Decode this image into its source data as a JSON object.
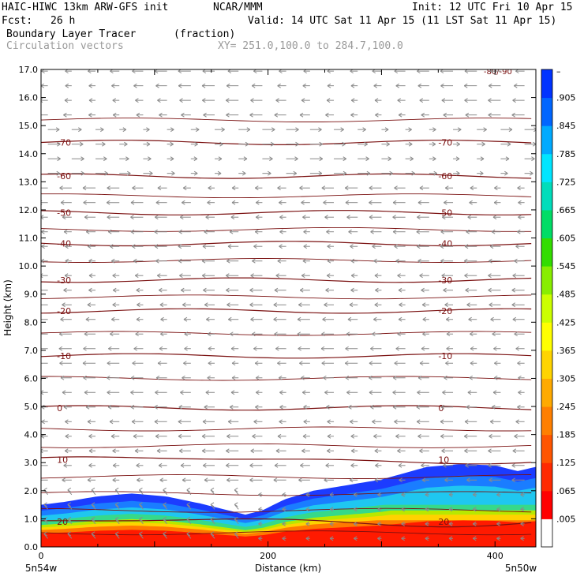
{
  "header": {
    "model": "HAIC-HIWC 13km ARW-GFS init",
    "org": "NCAR/MMM",
    "init": "Init: 12 UTC Fri 10 Apr 15",
    "fcst_label": "Fcst:",
    "fcst_value": "26 h",
    "valid": "Valid: 14 UTC Sat 11 Apr 15 (11 LST Sat 11 Apr 15)",
    "field": "Boundary Layer Tracer",
    "units": "(fraction)",
    "overlay": "Circulation vectors",
    "xy": "XY= 251.0,100.0 to 284.7,100.0"
  },
  "colors": {
    "contour": "#7a1010",
    "vector": "#8a8a8a",
    "scale": [
      "#ffffff",
      "#ff0000",
      "#ff2a00",
      "#ff5500",
      "#ff7f00",
      "#ffaa00",
      "#ffd400",
      "#ffff00",
      "#ccff00",
      "#88ee00",
      "#33dd00",
      "#00dd66",
      "#00ddbb",
      "#00e5ff",
      "#00aaff",
      "#0066ff",
      "#0033ff"
    ]
  },
  "chart_data": {
    "type": "heatmap",
    "title": "Boundary Layer Tracer",
    "units": "(fraction)",
    "xlabel": "Distance (km)",
    "ylabel": "Height (km)",
    "xlim": [
      0,
      436
    ],
    "ylim": [
      0,
      17
    ],
    "x_ticks": [
      0,
      200,
      400
    ],
    "y_ticks": [
      "0.0",
      "1.0",
      "2.0",
      "3.0",
      "4.0",
      "5.0",
      "6.0",
      "7.0",
      "8.0",
      "9.0",
      "10.0",
      "11.0",
      "12.0",
      "13.0",
      "14.0",
      "15.0",
      "16.0",
      "17.0"
    ],
    "x_end_labels": [
      "5n54w",
      "5n50w"
    ],
    "colorbar_labels": [
      ".005",
      ".065",
      ".125",
      ".185",
      ".245",
      ".305",
      ".365",
      ".425",
      ".485",
      ".545",
      ".605",
      ".665",
      ".725",
      ".785",
      ".845",
      ".905",
      "–"
    ],
    "tracer_top_km": [
      [
        0,
        1.5
      ],
      [
        20,
        1.6
      ],
      [
        50,
        1.8
      ],
      [
        80,
        1.9
      ],
      [
        110,
        1.8
      ],
      [
        140,
        1.55
      ],
      [
        165,
        1.3
      ],
      [
        180,
        1.15
      ],
      [
        195,
        1.3
      ],
      [
        215,
        1.7
      ],
      [
        240,
        2.0
      ],
      [
        270,
        2.2
      ],
      [
        300,
        2.4
      ],
      [
        340,
        2.85
      ],
      [
        370,
        2.95
      ],
      [
        400,
        2.9
      ],
      [
        420,
        2.7
      ],
      [
        436,
        2.85
      ]
    ],
    "temperature_contours": [
      {
        "label": "-70",
        "height_km": 14.4
      },
      {
        "label": "-60",
        "height_km": 13.2
      },
      {
        "label": "-50",
        "height_km": 11.9
      },
      {
        "label": "-40",
        "height_km": 10.8
      },
      {
        "label": "-30",
        "height_km": 9.5
      },
      {
        "label": "-20",
        "height_km": 8.4
      },
      {
        "label": "-10",
        "height_km": 6.8
      },
      {
        "label": "0",
        "height_km": 4.95
      },
      {
        "label": "10",
        "height_km": 3.1
      },
      {
        "label": "20",
        "height_km": 0.9
      }
    ],
    "contour_labels_right": [
      "-70",
      "-60",
      "-50",
      "-40",
      "-30",
      "-20",
      "-10",
      "0",
      "10",
      "20"
    ],
    "top_label": "-80/-90"
  }
}
